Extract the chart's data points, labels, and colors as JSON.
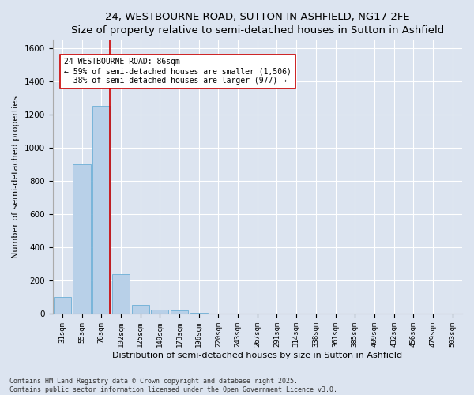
{
  "title": "24, WESTBOURNE ROAD, SUTTON-IN-ASHFIELD, NG17 2FE",
  "subtitle": "Size of property relative to semi-detached houses in Sutton in Ashfield",
  "xlabel": "Distribution of semi-detached houses by size in Sutton in Ashfield",
  "ylabel": "Number of semi-detached properties",
  "categories": [
    "31sqm",
    "55sqm",
    "78sqm",
    "102sqm",
    "125sqm",
    "149sqm",
    "173sqm",
    "196sqm",
    "220sqm",
    "243sqm",
    "267sqm",
    "291sqm",
    "314sqm",
    "338sqm",
    "361sqm",
    "385sqm",
    "409sqm",
    "432sqm",
    "456sqm",
    "479sqm",
    "503sqm"
  ],
  "values": [
    100,
    900,
    1250,
    240,
    55,
    25,
    20,
    8,
    3,
    0,
    0,
    0,
    0,
    0,
    0,
    0,
    0,
    0,
    0,
    0,
    0
  ],
  "bar_color": "#b8d0e8",
  "bar_edge_color": "#6baed6",
  "vline_x": 2.42,
  "vline_color": "#cc0000",
  "annotation_line1": "24 WESTBOURNE ROAD: 86sqm",
  "annotation_line2": "← 59% of semi-detached houses are smaller (1,506)",
  "annotation_line3": "  38% of semi-detached houses are larger (977) →",
  "annotation_box_color": "#ffffff",
  "annotation_box_edge": "#cc0000",
  "ylim": [
    0,
    1650
  ],
  "yticks": [
    0,
    200,
    400,
    600,
    800,
    1000,
    1200,
    1400,
    1600
  ],
  "background_color": "#dce4f0",
  "plot_bg_color": "#dce4f0",
  "footer": "Contains HM Land Registry data © Crown copyright and database right 2025.\nContains public sector information licensed under the Open Government Licence v3.0.",
  "title_fontsize": 9.5,
  "xlabel_fontsize": 8,
  "ylabel_fontsize": 8,
  "tick_fontsize": 6.5,
  "annotation_fontsize": 7,
  "footer_fontsize": 6
}
